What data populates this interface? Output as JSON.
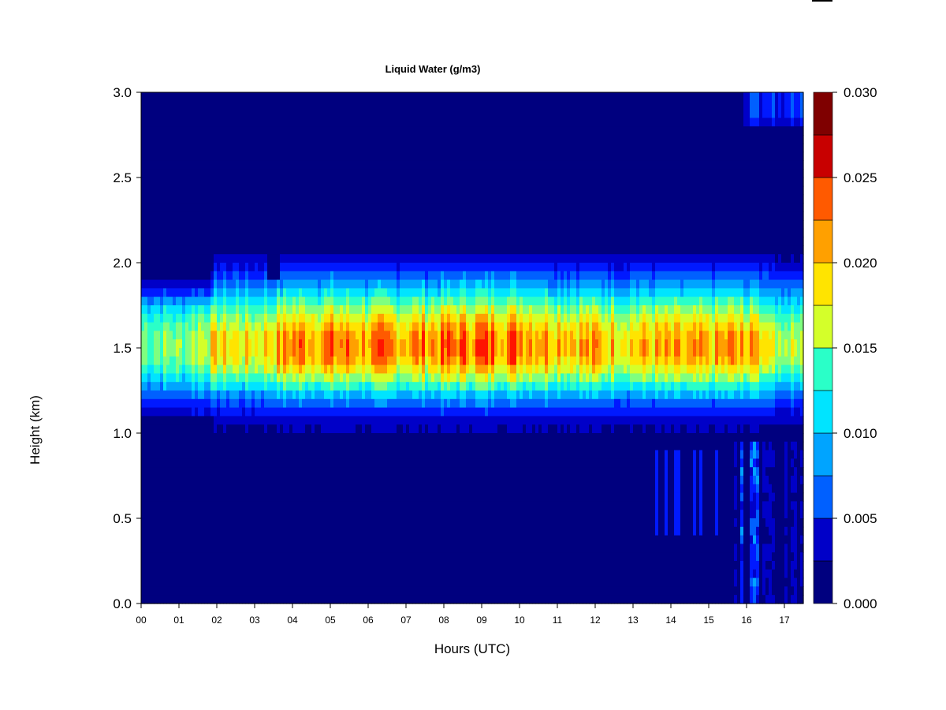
{
  "chart_data": {
    "type": "heatmap",
    "title": "Liquid Water (g/m3)",
    "xlabel": "Hours (UTC)",
    "ylabel": "Height (km)",
    "x_ticks": [
      "00",
      "01",
      "02",
      "03",
      "04",
      "05",
      "06",
      "07",
      "08",
      "09",
      "10",
      "11",
      "12",
      "13",
      "14",
      "15",
      "16",
      "17"
    ],
    "y_ticks": [
      "0.0",
      "0.5",
      "1.0",
      "1.5",
      "2.0",
      "2.5",
      "3.0"
    ],
    "xlim": [
      0,
      17.5
    ],
    "ylim": [
      0,
      3.0
    ],
    "colorbar": {
      "levels": [
        0.0,
        0.0025,
        0.005,
        0.0075,
        0.01,
        0.0125,
        0.015,
        0.0175,
        0.02,
        0.0225,
        0.025,
        0.0275,
        0.03
      ],
      "tick_labels": [
        "0.000",
        "0.005",
        "0.010",
        "0.015",
        "0.020",
        "0.025",
        "0.030"
      ],
      "colors": [
        "#00007f",
        "#0000c8",
        "#0019ff",
        "#0060ff",
        "#00a4ff",
        "#00e4ff",
        "#2affc8",
        "#7fff7f",
        "#d4ff2a",
        "#ffe400",
        "#ffa000",
        "#ff5a00",
        "#ff1400",
        "#c80000",
        "#7f0000"
      ]
    },
    "profile": {
      "description_units": "time-height field of liquid water content",
      "core_height_km": 1.5,
      "cloud_base_km": 0.95,
      "cloud_top_km": 2.2,
      "cloud_base_km_early": 1.05,
      "cloud_top_km_early": 2.0,
      "peak_intensity_by_hour": [
        0.019,
        0.019,
        0.024,
        0.023,
        0.028,
        0.028,
        0.027,
        0.027,
        0.028,
        0.029,
        0.029,
        0.027,
        0.026,
        0.025,
        0.025,
        0.025,
        0.028,
        0.021
      ],
      "upper_cloud": {
        "start_hour": 15.9,
        "end_hour": 17.5,
        "base_km": 2.78,
        "peak": 0.01
      },
      "lower_drizzle": {
        "start_hour": 15.7,
        "end_hour": 17.5,
        "base_km": 0.05,
        "peak": 0.011
      }
    }
  }
}
